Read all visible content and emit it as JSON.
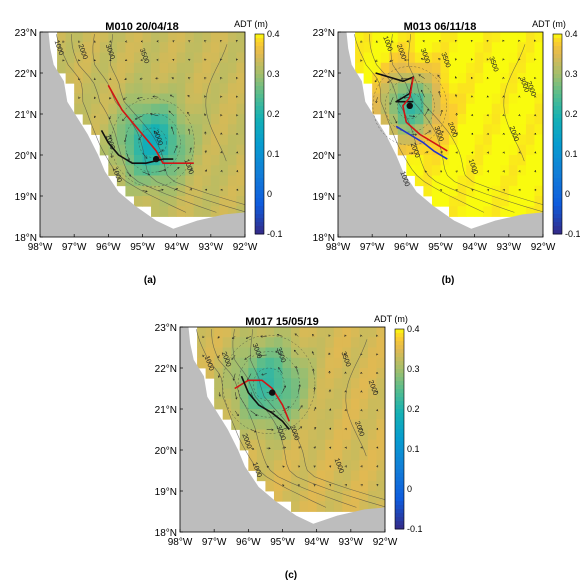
{
  "figure": {
    "panel_labels": [
      "(a)",
      "(b)",
      "(c)"
    ]
  },
  "chart_data": [
    {
      "type": "heatmap",
      "title": "M010 20/04/18",
      "colorbar_label": "ADT (m)",
      "colorbar_ticks": [
        "0.4",
        "0.3",
        "0.2",
        "0.1",
        "0",
        "-0.1"
      ],
      "colorbar_range": [
        -0.1,
        0.4
      ],
      "x_range": [
        -98,
        -92
      ],
      "y_range": [
        18,
        23
      ],
      "x_ticks": [
        "98°W",
        "97°W",
        "96°W",
        "95°W",
        "94°W",
        "93°W",
        "92°W"
      ],
      "y_ticks": [
        "23°N",
        "22°N",
        "21°N",
        "20°N",
        "19°N",
        "18°N"
      ],
      "background_adt": 0.33,
      "eddy": {
        "lon": -94.7,
        "lat": 20.3,
        "min_adt": 0.18,
        "radius_deg": 0.9
      },
      "isobath_labels": [
        {
          "text": "1000",
          "lon": -97.5,
          "lat": 22.6
        },
        {
          "text": "2000",
          "lon": -96.8,
          "lat": 22.5
        },
        {
          "text": "3000",
          "lon": -96.0,
          "lat": 22.5
        },
        {
          "text": "3500",
          "lon": -95.0,
          "lat": 22.4
        },
        {
          "text": "1000",
          "lon": -96.0,
          "lat": 20.3
        },
        {
          "text": "3000",
          "lon": -94.6,
          "lat": 20.4
        },
        {
          "text": "1000",
          "lon": -93.7,
          "lat": 19.7
        },
        {
          "text": "1000",
          "lon": -95.8,
          "lat": 19.5
        }
      ],
      "tracks": [
        {
          "color": "#d01515",
          "points": [
            [
              -96.0,
              21.7
            ],
            [
              -95.6,
              21.1
            ],
            [
              -95.1,
              20.6
            ],
            [
              -94.6,
              20.1
            ],
            [
              -94.4,
              19.8
            ],
            [
              -93.9,
              19.8
            ],
            [
              -93.5,
              19.8
            ]
          ]
        },
        {
          "color": "#111111",
          "points": [
            [
              -96.2,
              20.6
            ],
            [
              -96.0,
              20.3
            ],
            [
              -95.7,
              20.0
            ],
            [
              -95.3,
              19.8
            ],
            [
              -94.9,
              19.8
            ],
            [
              -94.4,
              19.9
            ],
            [
              -94.1,
              19.9
            ]
          ]
        }
      ],
      "marker": {
        "lon": -94.6,
        "lat": 19.9
      }
    },
    {
      "type": "heatmap",
      "title": "M013 06/11/18",
      "colorbar_label": "ADT (m)",
      "colorbar_ticks": [
        "0.4",
        "0.3",
        "0.2",
        "0.1",
        "0",
        "-0.1"
      ],
      "colorbar_range": [
        -0.1,
        0.4
      ],
      "x_range": [
        -98,
        -92
      ],
      "y_range": [
        18,
        23
      ],
      "x_ticks": [
        "98°W",
        "97°W",
        "96°W",
        "95°W",
        "94°W",
        "93°W",
        "92°W"
      ],
      "y_ticks": [
        "23°N",
        "22°N",
        "21°N",
        "20°N",
        "19°N",
        "18°N"
      ],
      "background_adt": 0.4,
      "eddy": {
        "lon": -95.9,
        "lat": 21.2,
        "min_adt": 0.22,
        "radius_deg": 0.8
      },
      "isobath_labels": [
        {
          "text": "1000",
          "lon": -96.6,
          "lat": 22.7
        },
        {
          "text": "2000",
          "lon": -96.2,
          "lat": 22.5
        },
        {
          "text": "3000",
          "lon": -95.5,
          "lat": 22.4
        },
        {
          "text": "3500",
          "lon": -94.9,
          "lat": 22.3
        },
        {
          "text": "3500",
          "lon": -93.5,
          "lat": 22.2
        },
        {
          "text": "3000",
          "lon": -92.6,
          "lat": 21.7
        },
        {
          "text": "2000",
          "lon": -92.4,
          "lat": 21.6
        },
        {
          "text": "2000",
          "lon": -95.8,
          "lat": 20.1
        },
        {
          "text": "3000",
          "lon": -95.1,
          "lat": 20.5
        },
        {
          "text": "2000",
          "lon": -94.7,
          "lat": 20.6
        },
        {
          "text": "2000",
          "lon": -92.9,
          "lat": 20.5
        },
        {
          "text": "1000",
          "lon": -94.1,
          "lat": 19.7
        },
        {
          "text": "1000",
          "lon": -96.1,
          "lat": 19.4
        }
      ],
      "tracks": [
        {
          "color": "#111111",
          "points": [
            [
              -96.9,
              22.0
            ],
            [
              -96.5,
              21.9
            ],
            [
              -96.1,
              21.8
            ],
            [
              -95.8,
              21.9
            ],
            [
              -95.9,
              21.5
            ],
            [
              -96.3,
              21.3
            ],
            [
              -95.8,
              21.3
            ]
          ]
        },
        {
          "color": "#d01515",
          "points": [
            [
              -95.8,
              21.9
            ],
            [
              -95.9,
              21.4
            ],
            [
              -96.1,
              21.2
            ],
            [
              -96.0,
              20.8
            ],
            [
              -95.6,
              20.5
            ],
            [
              -95.2,
              20.3
            ],
            [
              -94.8,
              20.1
            ]
          ]
        },
        {
          "color": "#2233cc",
          "points": [
            [
              -96.3,
              20.7
            ],
            [
              -95.9,
              20.5
            ],
            [
              -95.5,
              20.3
            ],
            [
              -95.2,
              20.1
            ],
            [
              -94.8,
              19.9
            ]
          ]
        }
      ],
      "marker": {
        "lon": -95.9,
        "lat": 21.2
      }
    },
    {
      "type": "heatmap",
      "title": "M017 15/05/19",
      "colorbar_label": "ADT (m)",
      "colorbar_ticks": [
        "0.4",
        "0.3",
        "0.2",
        "0.1",
        "0",
        "-0.1"
      ],
      "colorbar_range": [
        -0.1,
        0.4
      ],
      "x_range": [
        -98,
        -92
      ],
      "y_range": [
        18,
        23
      ],
      "x_ticks": [
        "98°W",
        "97°W",
        "96°W",
        "95°W",
        "94°W",
        "93°W",
        "92°W"
      ],
      "y_ticks": [
        "23°N",
        "22°N",
        "21°N",
        "20°N",
        "19°N",
        "18°N"
      ],
      "background_adt": 0.34,
      "eddy": {
        "lon": -95.4,
        "lat": 21.6,
        "min_adt": 0.22,
        "radius_deg": 1.0
      },
      "isobath_labels": [
        {
          "text": "1000",
          "lon": -97.2,
          "lat": 22.1
        },
        {
          "text": "2000",
          "lon": -96.7,
          "lat": 22.2
        },
        {
          "text": "3000",
          "lon": -95.8,
          "lat": 22.4
        },
        {
          "text": "3500",
          "lon": -95.1,
          "lat": 22.3
        },
        {
          "text": "3500",
          "lon": -93.2,
          "lat": 22.2
        },
        {
          "text": "2000",
          "lon": -92.4,
          "lat": 21.5
        },
        {
          "text": "2000",
          "lon": -96.1,
          "lat": 20.2
        },
        {
          "text": "3000",
          "lon": -95.1,
          "lat": 20.4
        },
        {
          "text": "2000",
          "lon": -94.7,
          "lat": 20.4
        },
        {
          "text": "2000",
          "lon": -92.8,
          "lat": 20.5
        },
        {
          "text": "1000",
          "lon": -93.4,
          "lat": 19.6
        },
        {
          "text": "1000",
          "lon": -95.8,
          "lat": 19.5
        }
      ],
      "tracks": [
        {
          "color": "#d01515",
          "points": [
            [
              -96.4,
              21.5
            ],
            [
              -96.0,
              21.7
            ],
            [
              -95.6,
              21.7
            ],
            [
              -95.3,
              21.5
            ],
            [
              -95.0,
              21.1
            ],
            [
              -94.8,
              20.7
            ]
          ]
        },
        {
          "color": "#111111",
          "points": [
            [
              -96.2,
              21.8
            ],
            [
              -96.0,
              21.4
            ],
            [
              -95.7,
              21.1
            ],
            [
              -95.3,
              20.9
            ],
            [
              -95.0,
              20.7
            ],
            [
              -94.8,
              20.5
            ]
          ]
        }
      ],
      "marker": {
        "lon": -95.3,
        "lat": 21.4
      }
    }
  ]
}
